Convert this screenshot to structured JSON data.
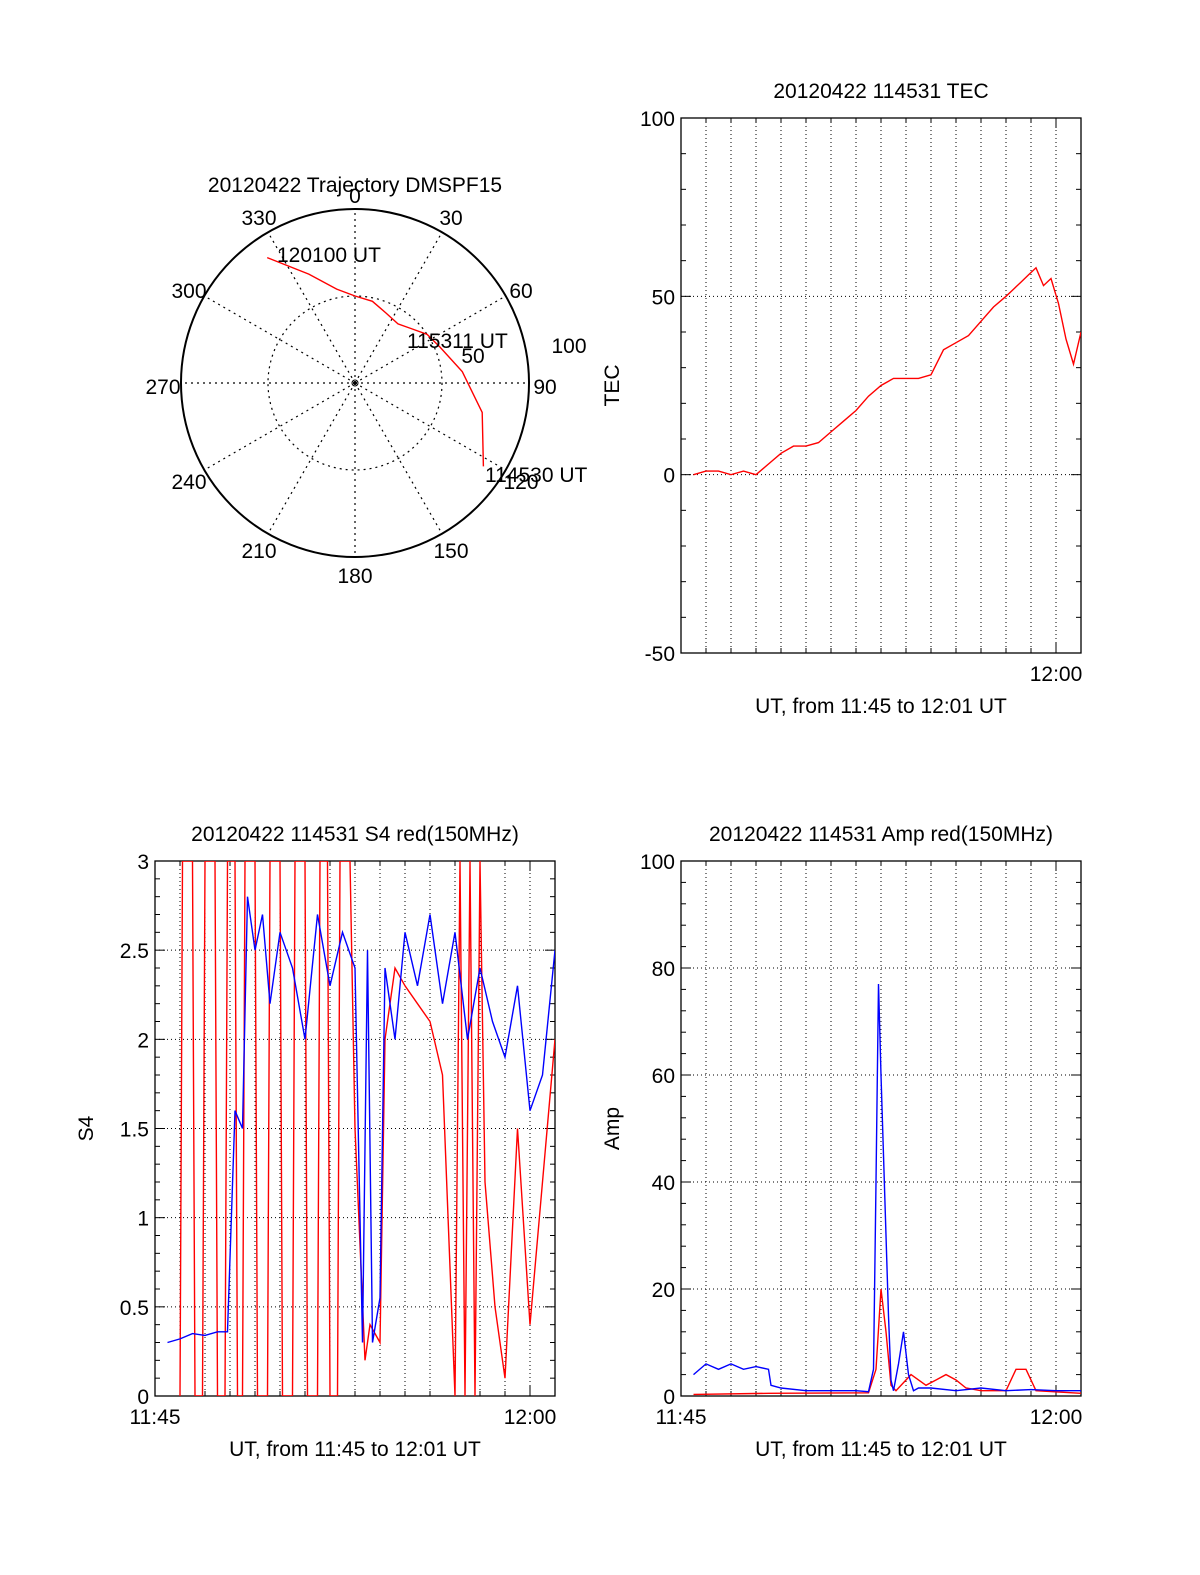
{
  "colors": {
    "red": "#ff0000",
    "blue": "#0000ff",
    "axis": "#000000",
    "grid": "#000000"
  },
  "chart_data": [
    {
      "id": "trajectory",
      "type": "polar",
      "title": "20120422 Trajectory DMSPF15",
      "angle_labels": [
        "0",
        "30",
        "60",
        "90",
        "120",
        "150",
        "180",
        "210",
        "240",
        "270",
        "300",
        "330"
      ],
      "radial_labels": [
        "50",
        "100"
      ],
      "rlim": [
        0,
        100
      ],
      "track_labels": [
        "120100 UT",
        "115311 UT",
        "114530 UT"
      ],
      "series": [
        {
          "color": "red",
          "points": [
            [
              325,
              88
            ],
            [
              337,
              68
            ],
            [
              349,
              55
            ],
            [
              0,
              50
            ],
            [
              12,
              48
            ],
            [
              24,
              44
            ],
            [
              36,
              42
            ],
            [
              46,
              45
            ],
            [
              56,
              50
            ],
            [
              67,
              53
            ],
            [
              84,
              62
            ],
            [
              103,
              75
            ],
            [
              123,
              88
            ]
          ]
        }
      ],
      "grid": true
    },
    {
      "id": "tec",
      "type": "line",
      "title": "20120422 114531 TEC",
      "ylabel": "TEC",
      "xlabel": "UT, from 11:45 to 12:01 UT",
      "x_tick_labels": [
        "12:00"
      ],
      "y_tick_labels": [
        "-50",
        "0",
        "50",
        "100"
      ],
      "xlim": [
        0,
        16
      ],
      "ylim": [
        -50,
        100
      ],
      "grid": true,
      "series": [
        {
          "color": "red",
          "x": [
            0.5,
            1.0,
            1.5,
            2.0,
            2.5,
            3.0,
            3.5,
            4.0,
            4.5,
            5.0,
            5.5,
            6.0,
            6.5,
            7.0,
            7.5,
            8.0,
            8.5,
            9.0,
            9.5,
            10.0,
            10.5,
            11.0,
            11.5,
            12.0,
            12.5,
            13.0,
            13.3,
            13.6,
            13.9,
            14.2,
            14.5,
            14.8,
            15.1,
            15.4,
            15.7,
            16.0
          ],
          "y": [
            0,
            1,
            1,
            0,
            1,
            0,
            3,
            6,
            8,
            8,
            9,
            12,
            15,
            18,
            22,
            25,
            27,
            27,
            27,
            28,
            35,
            37,
            39,
            43,
            47,
            50,
            52,
            54,
            56,
            58,
            53,
            55,
            48,
            38,
            31,
            40
          ]
        }
      ]
    },
    {
      "id": "s4",
      "type": "line",
      "title": "20120422 114531 S4 red(150MHz)",
      "ylabel": "S4",
      "xlabel": "UT, from 11:45 to 12:01 UT",
      "x_tick_labels": [
        "11:45",
        "12:00"
      ],
      "y_tick_labels": [
        "0",
        "0.5",
        "1",
        "1.5",
        "2",
        "2.5",
        "3"
      ],
      "xlim": [
        0,
        16
      ],
      "ylim": [
        0,
        3
      ],
      "grid": true,
      "series": [
        {
          "color": "red",
          "x": [
            1.0,
            1.1,
            1.5,
            1.6,
            1.9,
            2.0,
            2.4,
            2.5,
            2.8,
            2.9,
            3.2,
            3.3,
            3.5,
            3.6,
            4.0,
            4.1,
            4.5,
            4.6,
            5.0,
            5.1,
            5.5,
            5.6,
            6.0,
            6.1,
            6.5,
            6.6,
            6.9,
            7.0,
            7.3,
            7.4,
            7.8,
            8.0,
            8.4,
            8.6,
            9.0,
            9.2,
            9.6,
            10.0,
            10.5,
            11.0,
            11.5,
            12.0,
            12.2,
            12.4,
            12.6,
            12.8,
            13.0,
            13.2,
            13.6,
            14.0,
            14.5,
            15.0,
            15.5,
            16.0
          ],
          "y": [
            0,
            3,
            3,
            0,
            0,
            3,
            3,
            0,
            0,
            3,
            3,
            0,
            0,
            3,
            3,
            0,
            0,
            3,
            3,
            0,
            0,
            3,
            3,
            0,
            0,
            3,
            3,
            0,
            0,
            3,
            3,
            1.5,
            0.2,
            0.4,
            0.3,
            2.0,
            2.4,
            2.3,
            2.2,
            2.1,
            1.8,
            0,
            3,
            0,
            3,
            0,
            3,
            1.2,
            0.5,
            0.1,
            1.5,
            0.4,
            1.2,
            2.0
          ]
        },
        {
          "color": "blue",
          "x": [
            0.5,
            1.0,
            1.5,
            2.0,
            2.5,
            2.9,
            3.2,
            3.5,
            3.7,
            4.0,
            4.3,
            4.6,
            5.0,
            5.5,
            6.0,
            6.5,
            7.0,
            7.5,
            8.0,
            8.3,
            8.5,
            8.7,
            9.0,
            9.2,
            9.6,
            10.0,
            10.5,
            11.0,
            11.5,
            12.0,
            12.5,
            13.0,
            13.5,
            14.0,
            14.5,
            15.0,
            15.5,
            16.0
          ],
          "y": [
            0.3,
            0.32,
            0.35,
            0.34,
            0.36,
            0.36,
            1.6,
            1.5,
            2.8,
            2.5,
            2.7,
            2.2,
            2.6,
            2.4,
            2.0,
            2.7,
            2.3,
            2.6,
            2.4,
            0.3,
            2.5,
            0.3,
            0.55,
            2.4,
            2.0,
            2.6,
            2.3,
            2.7,
            2.2,
            2.6,
            2.0,
            2.4,
            2.1,
            1.9,
            2.3,
            1.6,
            1.8,
            2.5
          ]
        }
      ]
    },
    {
      "id": "amp",
      "type": "line",
      "title": "20120422 114531 Amp red(150MHz)",
      "ylabel": "Amp",
      "xlabel": "UT, from 11:45 to 12:01 UT",
      "x_tick_labels": [
        "11:45",
        "12:00"
      ],
      "y_tick_labels": [
        "0",
        "20",
        "40",
        "60",
        "80",
        "100"
      ],
      "xlim": [
        0,
        16
      ],
      "ylim": [
        0,
        100
      ],
      "grid": true,
      "series": [
        {
          "color": "red",
          "x": [
            0.5,
            3.5,
            7.5,
            7.8,
            8.0,
            8.2,
            8.4,
            8.6,
            9.2,
            9.8,
            10.2,
            10.6,
            11.0,
            11.4,
            12.0,
            13.0,
            13.4,
            13.8,
            14.2,
            16.0
          ],
          "y": [
            0.3,
            0.5,
            0.6,
            5.0,
            20.0,
            12.0,
            2.0,
            1.0,
            4.0,
            2.0,
            3.0,
            4.0,
            3.0,
            1.5,
            1.0,
            1.0,
            5.0,
            5.0,
            1.0,
            0.5
          ]
        },
        {
          "color": "blue",
          "x": [
            0.5,
            1.0,
            1.5,
            2.0,
            2.5,
            3.0,
            3.5,
            3.6,
            4.0,
            5.0,
            6.0,
            7.0,
            7.5,
            7.7,
            7.8,
            7.9,
            8.0,
            8.1,
            8.2,
            8.3,
            8.4,
            8.5,
            8.7,
            8.9,
            9.1,
            9.3,
            9.5,
            10.0,
            11.0,
            12.0,
            13.0,
            14.0,
            15.0,
            16.0
          ],
          "y": [
            4.0,
            6.0,
            5.0,
            6.0,
            5.0,
            5.5,
            5.0,
            2.0,
            1.5,
            1.0,
            1.0,
            1.0,
            0.8,
            5.0,
            40.0,
            77.0,
            60.0,
            45.0,
            30.0,
            15.0,
            3.0,
            1.0,
            6.0,
            12.0,
            4.0,
            1.0,
            1.5,
            1.5,
            1.0,
            1.5,
            1.0,
            1.2,
            1.0,
            1.0
          ]
        }
      ]
    }
  ]
}
